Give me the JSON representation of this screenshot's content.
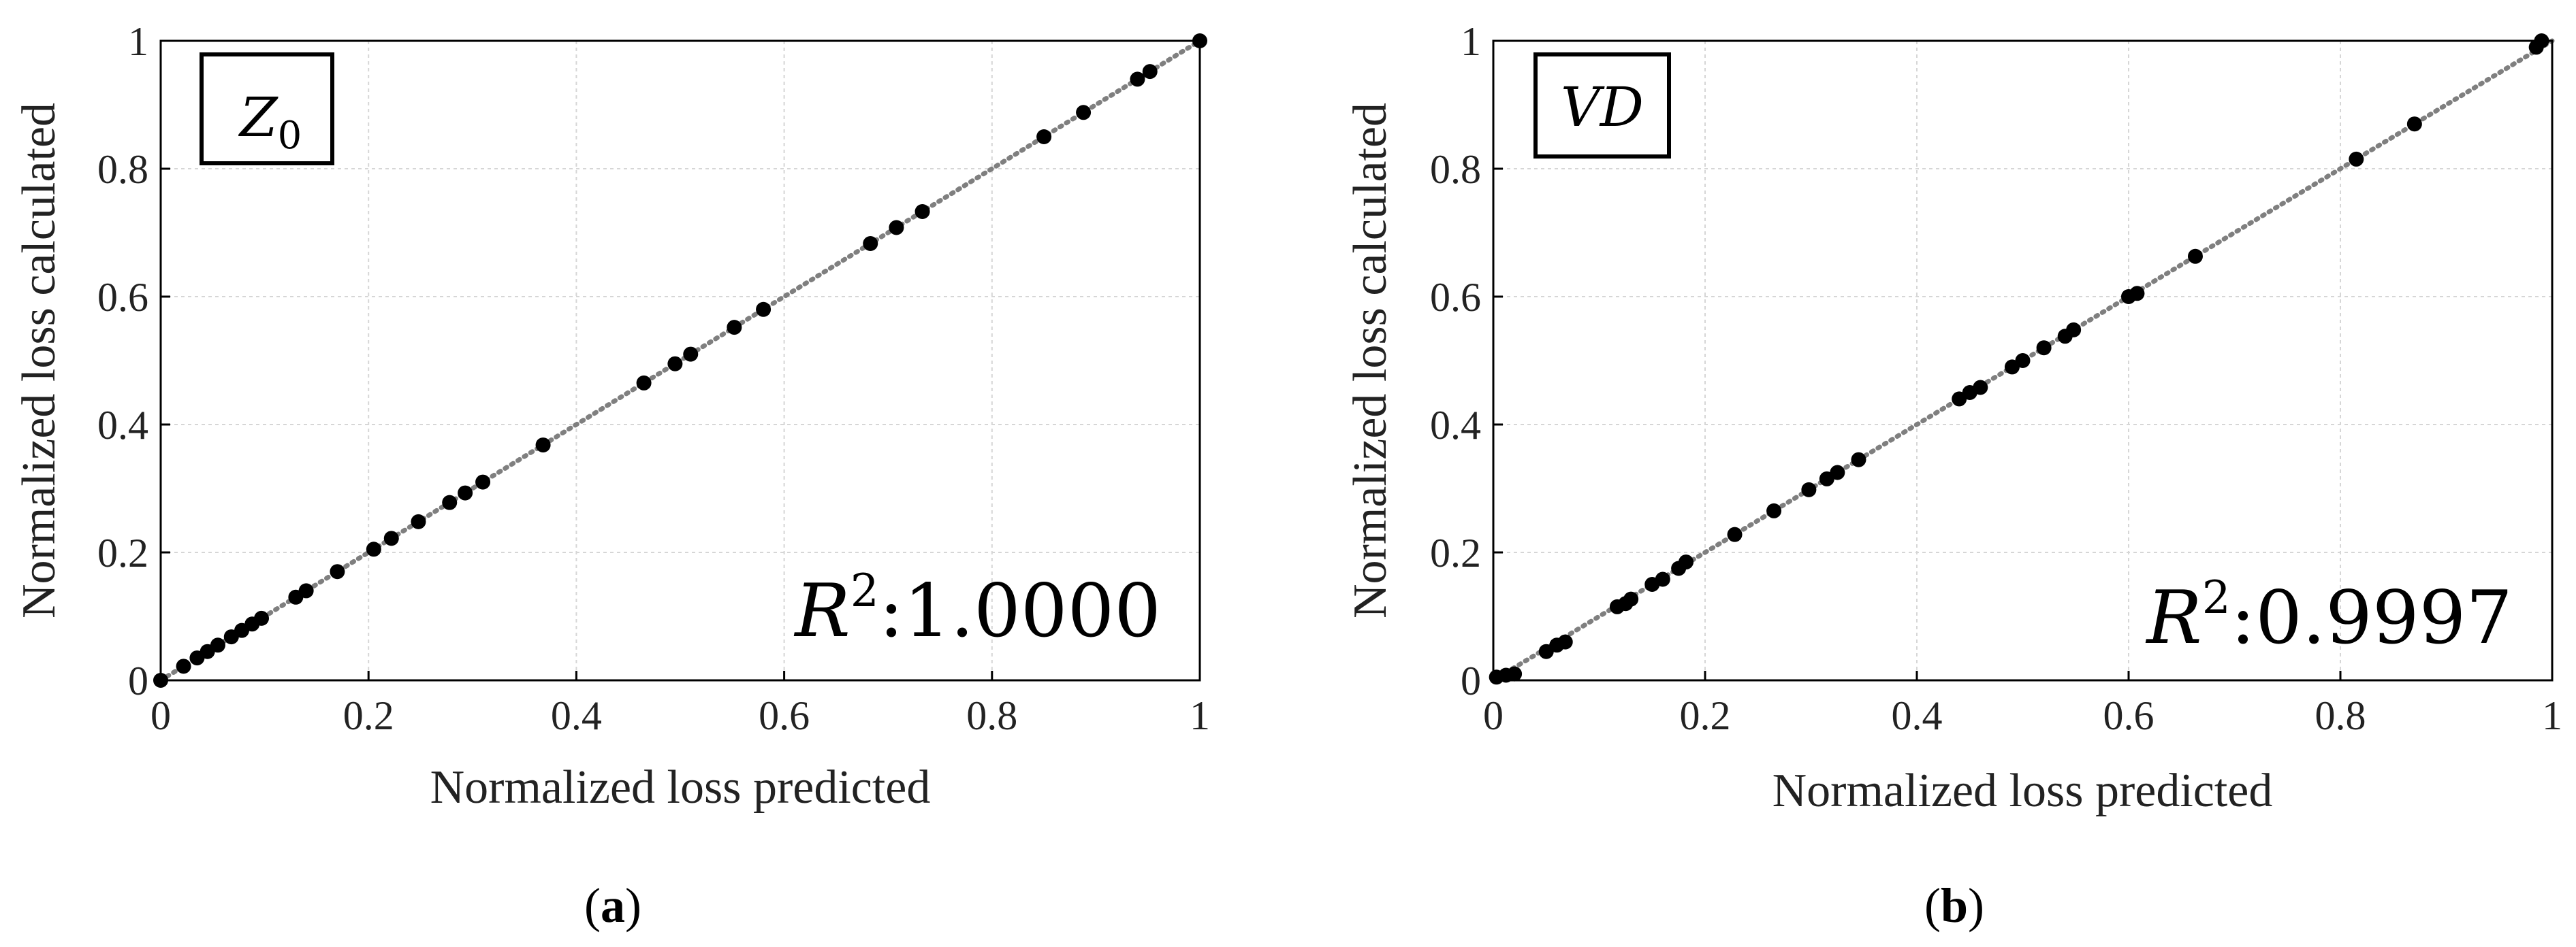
{
  "chart_data": [
    {
      "type": "scatter",
      "panel_label": "a",
      "legend_box": "Z",
      "legend_subscript": "0",
      "xlabel": "Normalized loss predicted",
      "ylabel": "Normalized loss calculated",
      "xlim": [
        0,
        1
      ],
      "ylim": [
        0,
        1
      ],
      "xticks": [
        "0",
        "0.2",
        "0.4",
        "0.6",
        "0.8",
        "1"
      ],
      "yticks": [
        "0",
        "0.2",
        "0.4",
        "0.6",
        "0.8",
        "1"
      ],
      "grid": true,
      "fit_line": "dotted y = x",
      "r2_label": "R",
      "r2_sup": "2",
      "r2_value": ":1.0000",
      "points": [
        [
          0.0,
          0.0
        ],
        [
          0.022,
          0.022
        ],
        [
          0.035,
          0.035
        ],
        [
          0.045,
          0.045
        ],
        [
          0.055,
          0.055
        ],
        [
          0.068,
          0.068
        ],
        [
          0.078,
          0.078
        ],
        [
          0.088,
          0.088
        ],
        [
          0.097,
          0.097
        ],
        [
          0.13,
          0.13
        ],
        [
          0.14,
          0.14
        ],
        [
          0.17,
          0.17
        ],
        [
          0.205,
          0.205
        ],
        [
          0.222,
          0.222
        ],
        [
          0.248,
          0.248
        ],
        [
          0.278,
          0.278
        ],
        [
          0.293,
          0.293
        ],
        [
          0.31,
          0.31
        ],
        [
          0.368,
          0.368
        ],
        [
          0.465,
          0.465
        ],
        [
          0.495,
          0.495
        ],
        [
          0.51,
          0.51
        ],
        [
          0.552,
          0.552
        ],
        [
          0.58,
          0.58
        ],
        [
          0.683,
          0.683
        ],
        [
          0.708,
          0.708
        ],
        [
          0.733,
          0.733
        ],
        [
          0.85,
          0.85
        ],
        [
          0.888,
          0.888
        ],
        [
          0.94,
          0.94
        ],
        [
          0.952,
          0.952
        ],
        [
          1.0,
          1.0
        ]
      ]
    },
    {
      "type": "scatter",
      "panel_label": "b",
      "legend_box": "VD",
      "legend_subscript": "",
      "xlabel": "Normalized loss predicted",
      "ylabel": "Normalized loss calculated",
      "xlim": [
        0,
        1
      ],
      "ylim": [
        0,
        1
      ],
      "xticks": [
        "0",
        "0.2",
        "0.4",
        "0.6",
        "0.8",
        "1"
      ],
      "yticks": [
        "0",
        "0.2",
        "0.4",
        "0.6",
        "0.8",
        "1"
      ],
      "grid": true,
      "fit_line": "dotted y = x",
      "r2_label": "R",
      "r2_sup": "2",
      "r2_value": ":0.9997",
      "points": [
        [
          0.003,
          0.005
        ],
        [
          0.012,
          0.008
        ],
        [
          0.02,
          0.01
        ],
        [
          0.05,
          0.045
        ],
        [
          0.06,
          0.055
        ],
        [
          0.068,
          0.06
        ],
        [
          0.117,
          0.115
        ],
        [
          0.125,
          0.12
        ],
        [
          0.13,
          0.127
        ],
        [
          0.15,
          0.15
        ],
        [
          0.16,
          0.158
        ],
        [
          0.175,
          0.175
        ],
        [
          0.182,
          0.185
        ],
        [
          0.228,
          0.228
        ],
        [
          0.265,
          0.265
        ],
        [
          0.298,
          0.298
        ],
        [
          0.315,
          0.315
        ],
        [
          0.325,
          0.325
        ],
        [
          0.345,
          0.345
        ],
        [
          0.44,
          0.44
        ],
        [
          0.45,
          0.45
        ],
        [
          0.46,
          0.458
        ],
        [
          0.49,
          0.49
        ],
        [
          0.5,
          0.5
        ],
        [
          0.52,
          0.52
        ],
        [
          0.54,
          0.538
        ],
        [
          0.548,
          0.548
        ],
        [
          0.6,
          0.6
        ],
        [
          0.608,
          0.605
        ],
        [
          0.663,
          0.663
        ],
        [
          0.815,
          0.815
        ],
        [
          0.87,
          0.87
        ],
        [
          0.985,
          0.99
        ],
        [
          0.99,
          1.0
        ]
      ]
    }
  ]
}
